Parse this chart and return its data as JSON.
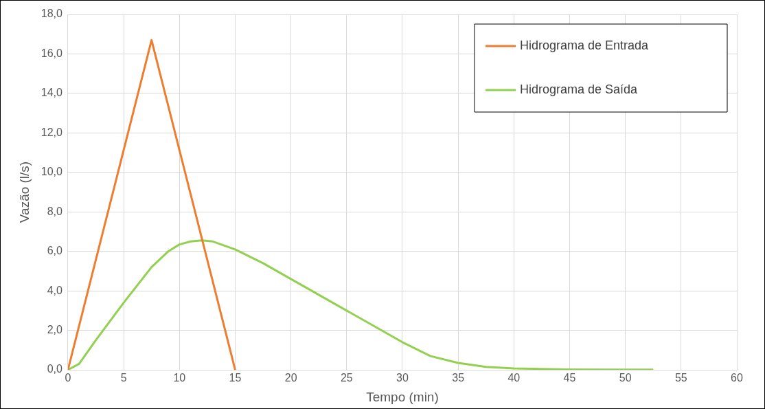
{
  "chart_data": {
    "type": "line",
    "xlabel": "Tempo (min)",
    "ylabel": "Vazão (l/s)",
    "xlim": [
      0,
      60
    ],
    "xticks": [
      0,
      5,
      10,
      15,
      20,
      25,
      30,
      35,
      40,
      45,
      50,
      55,
      60
    ],
    "ylim": [
      0,
      18
    ],
    "yticks": [
      {
        "value": 0,
        "label": "0,0"
      },
      {
        "value": 2,
        "label": "2,0"
      },
      {
        "value": 4,
        "label": "4,0"
      },
      {
        "value": 6,
        "label": "6,0"
      },
      {
        "value": 8,
        "label": "8,0"
      },
      {
        "value": 10,
        "label": "10,0"
      },
      {
        "value": 12,
        "label": "12,0"
      },
      {
        "value": 14,
        "label": "14,0"
      },
      {
        "value": 16,
        "label": "16,0"
      },
      {
        "value": 18,
        "label": "18,0"
      }
    ],
    "grid": true,
    "legend": "top right",
    "marker": "none",
    "series": [
      {
        "name": "Hidrograma de Entrada",
        "color": "#ed7d31",
        "x": [
          0,
          7.5,
          15
        ],
        "values": [
          0,
          16.7,
          0
        ]
      },
      {
        "name": "Hidrograma de Saída",
        "color": "#92d050",
        "x": [
          0,
          1,
          2.5,
          5,
          7.5,
          9,
          10,
          11,
          12,
          13,
          15,
          17.5,
          20,
          22.5,
          25,
          27.5,
          30,
          32.5,
          35,
          37.5,
          40,
          45,
          50,
          52.5
        ],
        "values": [
          0,
          0.3,
          1.5,
          3.4,
          5.2,
          6.0,
          6.35,
          6.5,
          6.55,
          6.5,
          6.1,
          5.4,
          4.6,
          3.8,
          3.0,
          2.2,
          1.4,
          0.7,
          0.35,
          0.15,
          0.07,
          0.02,
          0.01,
          0.01
        ]
      }
    ]
  }
}
